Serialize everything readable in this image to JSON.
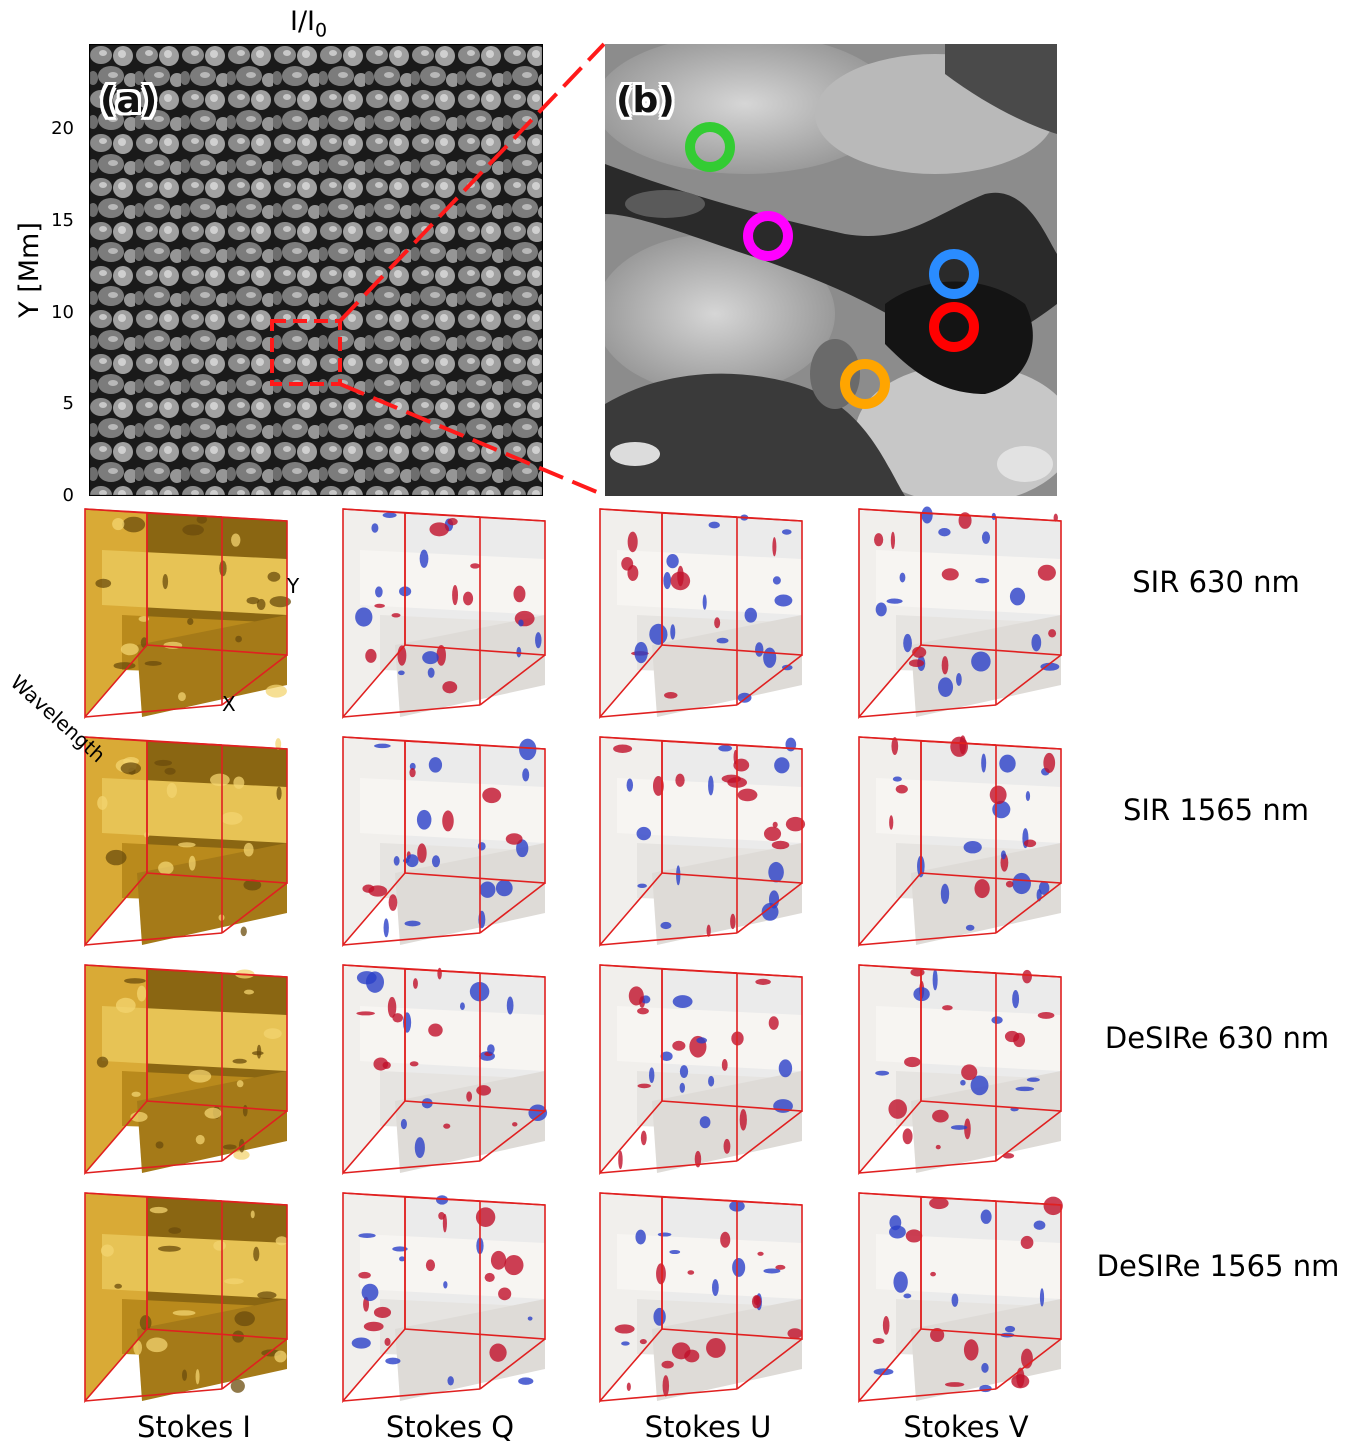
{
  "panel_a": {
    "title": "I/I",
    "title_sub": "0",
    "label": "(a)",
    "ylabel": "Y [Mm]",
    "yticks": [
      "0",
      "5",
      "10",
      "15",
      "20"
    ]
  },
  "panel_b": {
    "label": "(b)",
    "markers": [
      {
        "color": "#33cc33"
      },
      {
        "color": "#ff00ff"
      },
      {
        "color": "#2a8cff"
      },
      {
        "color": "#ff0000"
      },
      {
        "color": "#ffa500"
      }
    ]
  },
  "cube_axes": {
    "y": "Y",
    "x": "X",
    "wavelength": "Wavelength"
  },
  "rows": [
    "SIR 630 nm",
    "SIR 1565 nm",
    "DeSIRe 630 nm",
    "DeSIRe 1565 nm"
  ],
  "columns": [
    "Stokes I",
    "Stokes Q",
    "Stokes U",
    "Stokes V"
  ],
  "colors": {
    "zoom_box": "#ff1a1a",
    "cube_edge": "#e02020",
    "stokes_i_gold": "#c8961e",
    "positive": "#c0102a",
    "negative": "#2a40c8"
  }
}
